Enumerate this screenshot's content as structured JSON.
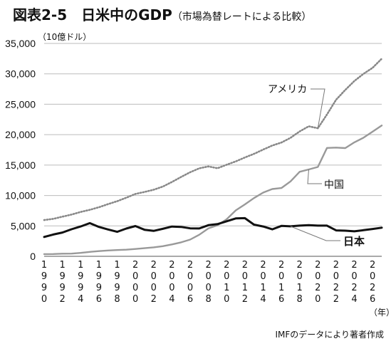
{
  "header": {
    "title_main": "図表2-5　日米中のGDP",
    "title_sub": "（市場為替レートによる比較）"
  },
  "chart_data": {
    "type": "line",
    "ylabel": "（10億ドル）",
    "xlabel": "（年）",
    "ylim": [
      0,
      35000
    ],
    "yticks": [
      0,
      5000,
      10000,
      15000,
      20000,
      25000,
      30000,
      35000
    ],
    "ytick_labels": [
      "0",
      "5,000",
      "10,000",
      "15,000",
      "20,000",
      "25,000",
      "30,000",
      "35,000"
    ],
    "xlim": [
      1990,
      2027
    ],
    "xticks": [
      1990,
      1992,
      1994,
      1996,
      1998,
      2000,
      2002,
      2004,
      2006,
      2008,
      2010,
      2012,
      2014,
      2016,
      2018,
      2020,
      2022,
      2024,
      2026
    ],
    "x": [
      1990,
      1991,
      1992,
      1993,
      1994,
      1995,
      1996,
      1997,
      1998,
      1999,
      2000,
      2001,
      2002,
      2003,
      2004,
      2005,
      2006,
      2007,
      2008,
      2009,
      2010,
      2011,
      2012,
      2013,
      2014,
      2015,
      2016,
      2017,
      2018,
      2019,
      2020,
      2021,
      2022,
      2023,
      2024,
      2025,
      2026,
      2027
    ],
    "series": [
      {
        "name": "アメリカ",
        "style": "dotted",
        "color": "#888888",
        "values": [
          5960,
          6160,
          6520,
          6860,
          7290,
          7640,
          8070,
          8580,
          9060,
          9630,
          10250,
          10580,
          10940,
          11460,
          12220,
          13040,
          13820,
          14470,
          14770,
          14480,
          15050,
          15600,
          16250,
          16840,
          17550,
          18210,
          18700,
          19480,
          20530,
          21380,
          21060,
          23320,
          25740,
          27360,
          28830,
          30000,
          31000,
          32500
        ]
      },
      {
        "name": "中国",
        "style": "solid",
        "color": "#999999",
        "values": [
          360,
          380,
          430,
          440,
          560,
          730,
          860,
          960,
          1030,
          1090,
          1210,
          1340,
          1470,
          1660,
          1960,
          2290,
          2750,
          3550,
          4590,
          5100,
          6090,
          7550,
          8530,
          9570,
          10480,
          11060,
          11230,
          12310,
          13890,
          14280,
          14690,
          17820,
          17880,
          17790,
          18740,
          19500,
          20500,
          21500
        ]
      },
      {
        "name": "日本",
        "style": "solid",
        "color": "#111111",
        "values": [
          3180,
          3580,
          3910,
          4450,
          4910,
          5450,
          4830,
          4410,
          4030,
          4560,
          4970,
          4370,
          4180,
          4520,
          4890,
          4830,
          4600,
          4580,
          5110,
          5290,
          5760,
          6230,
          6270,
          5210,
          4900,
          4440,
          5000,
          4930,
          5040,
          5120,
          5050,
          5040,
          4260,
          4210,
          4110,
          4300,
          4500,
          4700
        ]
      }
    ],
    "annotations": [
      {
        "text": "アメリカ",
        "series": "アメリカ"
      },
      {
        "text": "中国",
        "series": "中国"
      },
      {
        "text": "日本",
        "series": "日本"
      }
    ],
    "grid": false,
    "source": "IMFのデータにより著者作成"
  }
}
